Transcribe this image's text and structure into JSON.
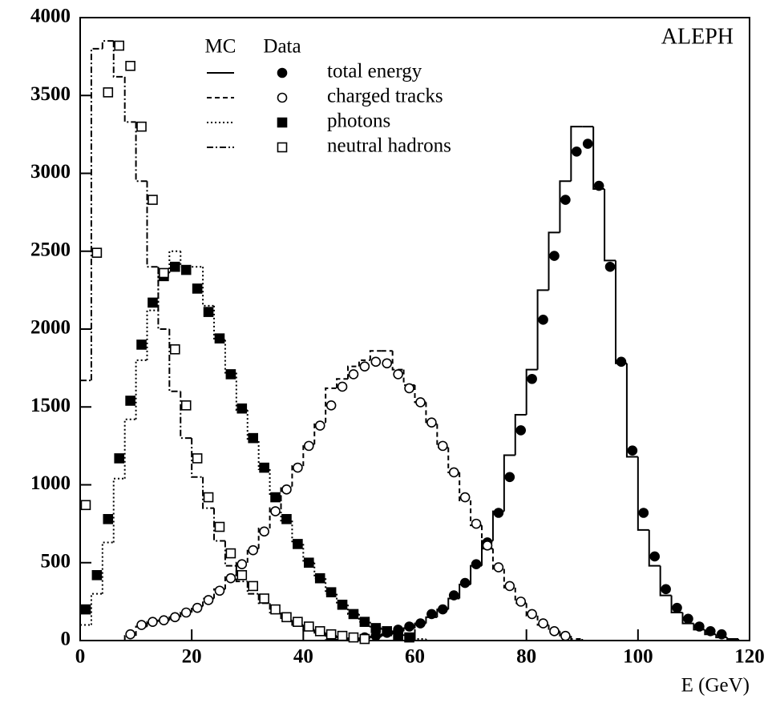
{
  "chart_data": {
    "type": "histogram",
    "annotation": "ALEPH",
    "xlabel": "E (GeV)",
    "legend_headers": [
      "MC",
      "Data"
    ],
    "xlim": [
      0,
      120
    ],
    "xticks": [
      0,
      20,
      40,
      60,
      80,
      100,
      120
    ],
    "ylim": [
      0,
      4000
    ],
    "yticks": [
      0,
      500,
      1000,
      1500,
      2000,
      2500,
      3000,
      3500,
      4000
    ],
    "bins": [
      0,
      2,
      4,
      6,
      8,
      10,
      12,
      14,
      16,
      18,
      20,
      22,
      24,
      26,
      28,
      30,
      32,
      34,
      36,
      38,
      40,
      42,
      44,
      46,
      48,
      50,
      52,
      54,
      56,
      58,
      60,
      62,
      64,
      66,
      68,
      70,
      72,
      74,
      76,
      78,
      80,
      82,
      84,
      86,
      88,
      90,
      92,
      94,
      96,
      98,
      100,
      102,
      104,
      106,
      108,
      110,
      112,
      114,
      116,
      118,
      120
    ],
    "series": [
      {
        "name": "total energy",
        "color": "#000000",
        "line_style": "solid",
        "marker": "filled-circle",
        "values": [
          null,
          null,
          null,
          null,
          null,
          null,
          null,
          null,
          null,
          null,
          null,
          null,
          null,
          null,
          null,
          null,
          null,
          null,
          null,
          null,
          null,
          null,
          null,
          null,
          null,
          20,
          30,
          50,
          70,
          90,
          110,
          170,
          200,
          290,
          370,
          490,
          630,
          820,
          1050,
          1350,
          1680,
          2060,
          2470,
          2830,
          3140,
          3190,
          2920,
          2400,
          1790,
          1220,
          820,
          540,
          330,
          210,
          140,
          90,
          60,
          40,
          null,
          null
        ],
        "mc_values": [
          0,
          0,
          0,
          0,
          0,
          0,
          0,
          0,
          0,
          0,
          0,
          0,
          0,
          0,
          0,
          0,
          0,
          0,
          0,
          0,
          0,
          0,
          3,
          5,
          10,
          15,
          25,
          40,
          60,
          80,
          110,
          150,
          200,
          270,
          360,
          480,
          640,
          830,
          1190,
          1450,
          1740,
          2250,
          2620,
          2950,
          3300,
          3300,
          2900,
          2440,
          1780,
          1180,
          710,
          480,
          290,
          180,
          110,
          70,
          40,
          20,
          10,
          0
        ]
      },
      {
        "name": "charged tracks",
        "color": "#000000",
        "line_style": "dashed",
        "marker": "open-circle",
        "values": [
          null,
          null,
          null,
          null,
          40,
          100,
          120,
          130,
          150,
          180,
          210,
          260,
          320,
          400,
          490,
          580,
          700,
          830,
          970,
          1110,
          1250,
          1380,
          1510,
          1630,
          1710,
          1760,
          1790,
          1780,
          1710,
          1620,
          1530,
          1400,
          1250,
          1080,
          920,
          750,
          610,
          470,
          350,
          250,
          170,
          110,
          60,
          30,
          null,
          null,
          null,
          null,
          null,
          null,
          null,
          null,
          null,
          null,
          null,
          null,
          null,
          null,
          null,
          null
        ],
        "mc_values": [
          0,
          0,
          0,
          0,
          30,
          90,
          120,
          130,
          150,
          180,
          220,
          270,
          330,
          420,
          500,
          590,
          720,
          850,
          990,
          1120,
          1260,
          1400,
          1620,
          1680,
          1760,
          1800,
          1860,
          1860,
          1740,
          1640,
          1530,
          1390,
          1240,
          1080,
          900,
          740,
          590,
          460,
          340,
          240,
          160,
          100,
          60,
          30,
          10,
          0,
          0,
          0,
          0,
          0,
          0,
          0,
          0,
          0,
          0,
          0,
          0,
          0,
          0,
          0
        ]
      },
      {
        "name": "photons",
        "color": "#000000",
        "line_style": "dotted",
        "marker": "filled-square",
        "values": [
          200,
          420,
          780,
          1170,
          1540,
          1900,
          2170,
          2340,
          2400,
          2380,
          2260,
          2110,
          1940,
          1710,
          1490,
          1300,
          1110,
          920,
          780,
          620,
          500,
          400,
          310,
          230,
          170,
          120,
          80,
          60,
          30,
          20,
          null,
          null,
          null,
          null,
          null,
          null,
          null,
          null,
          null,
          null,
          null,
          null,
          null,
          null,
          null,
          null,
          null,
          null,
          null,
          null,
          null,
          null,
          null,
          null,
          null,
          null,
          null,
          null,
          null,
          null
        ],
        "mc_values": [
          100,
          300,
          630,
          1040,
          1420,
          1800,
          2120,
          2360,
          2500,
          2400,
          2400,
          2150,
          1930,
          1720,
          1480,
          1280,
          1100,
          930,
          770,
          620,
          500,
          400,
          300,
          230,
          170,
          120,
          80,
          60,
          40,
          20,
          10,
          0,
          0,
          0,
          0,
          0,
          0,
          0,
          0,
          0,
          0,
          0,
          0,
          0,
          0,
          0,
          0,
          0,
          0,
          0,
          0,
          0,
          0,
          0,
          0,
          0,
          0,
          0,
          0,
          0
        ]
      },
      {
        "name": "neutral hadrons",
        "color": "#000000",
        "line_style": "dashdot",
        "marker": "open-square",
        "values": [
          870,
          2490,
          3520,
          3820,
          3690,
          3300,
          2830,
          2360,
          1870,
          1510,
          1170,
          920,
          730,
          560,
          420,
          350,
          270,
          200,
          150,
          120,
          90,
          60,
          40,
          30,
          20,
          10,
          null,
          null,
          null,
          null,
          null,
          null,
          null,
          null,
          null,
          null,
          null,
          null,
          null,
          null,
          null,
          null,
          null,
          null,
          null,
          null,
          null,
          null,
          null,
          null,
          null,
          null,
          null,
          null,
          null,
          null,
          null,
          null,
          null,
          null
        ],
        "mc_values": [
          1670,
          3800,
          3850,
          3620,
          3330,
          2950,
          2400,
          2000,
          1600,
          1300,
          1050,
          850,
          640,
          480,
          380,
          300,
          240,
          180,
          130,
          100,
          70,
          50,
          30,
          20,
          10,
          5,
          0,
          0,
          0,
          0,
          0,
          0,
          0,
          0,
          0,
          0,
          0,
          0,
          0,
          0,
          0,
          0,
          0,
          0,
          0,
          0,
          0,
          0,
          0,
          0,
          0,
          0,
          0,
          0,
          0,
          0,
          0,
          0,
          0,
          0
        ]
      }
    ]
  }
}
